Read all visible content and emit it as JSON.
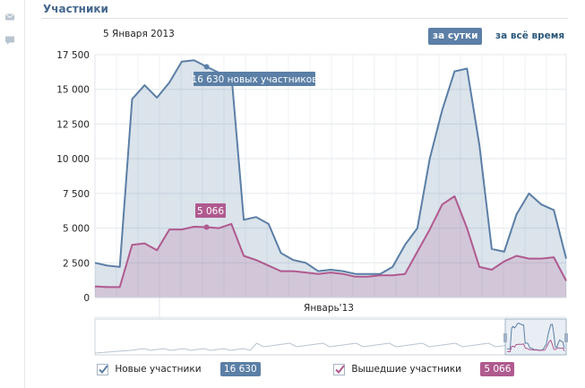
{
  "section": {
    "title": "Участники"
  },
  "header": {
    "date": "5 Января 2013"
  },
  "period_buttons": {
    "day": "за сутки",
    "all_time": "за всё время"
  },
  "tooltips": {
    "new": "16 630 новых участников",
    "left": "5 066"
  },
  "x_axis_label": "Январь'13",
  "legend": {
    "new_label": "Новые участники",
    "new_value": "16 630",
    "left_label": "Вышедшие участники",
    "left_value": "5 066"
  },
  "colors": {
    "new": "#5b7fa6",
    "left": "#b05a8f",
    "accent": "#45688e"
  },
  "icons": {
    "rail_top": "envelope-icon",
    "rail_second": "comment-icon"
  },
  "chart_data": {
    "type": "area",
    "yticks": [
      "17 500",
      "15 000",
      "12 500",
      "10 000",
      "7 500",
      "5 000",
      "2 500",
      "0"
    ],
    "ylim": [
      0,
      17500
    ],
    "xlabel": "Январь'13",
    "highlight_index": 9,
    "series": [
      {
        "name": "Новые участники",
        "values": [
          2500,
          2300,
          2200,
          14300,
          15300,
          14400,
          15500,
          17000,
          17100,
          16630,
          16200,
          16100,
          5600,
          5800,
          5300,
          3200,
          2700,
          2500,
          1900,
          2000,
          1900,
          1700,
          1700,
          1700,
          2200,
          3800,
          5000,
          10000,
          13500,
          16300,
          16500,
          11000,
          3500,
          3300,
          6000,
          7500,
          6700,
          6300,
          2800
        ]
      },
      {
        "name": "Вышедшие участники",
        "values": [
          800,
          750,
          750,
          3800,
          3900,
          3400,
          4900,
          4900,
          5100,
          5066,
          5000,
          5300,
          3000,
          2700,
          2300,
          1900,
          1900,
          1800,
          1700,
          1800,
          1700,
          1500,
          1500,
          1600,
          1600,
          1700,
          3300,
          4900,
          6700,
          7300,
          5000,
          2200,
          2000,
          2600,
          3000,
          2800,
          2800,
          2900,
          1200
        ]
      }
    ]
  }
}
